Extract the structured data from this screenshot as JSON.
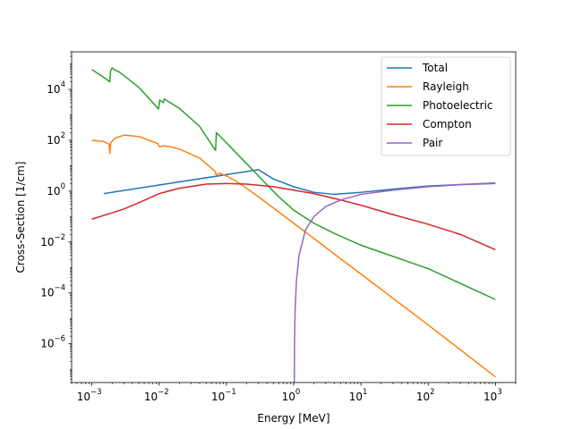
{
  "chart_data": {
    "type": "line",
    "xlabel": "Energy [MeV]",
    "ylabel": "Cross-Section [1/cm]",
    "xscale": "log",
    "yscale": "log",
    "xlim": [
      0.0005,
      2000
    ],
    "ylim": [
      3e-08,
      300000
    ],
    "grid": false,
    "legend_position": "top-right",
    "x_ticks": [
      {
        "value": 0.001,
        "mantissa": "10",
        "exponent": "−3"
      },
      {
        "value": 0.01,
        "mantissa": "10",
        "exponent": "−2"
      },
      {
        "value": 0.1,
        "mantissa": "10",
        "exponent": "−1"
      },
      {
        "value": 1,
        "mantissa": "10",
        "exponent": "0"
      },
      {
        "value": 10,
        "mantissa": "10",
        "exponent": "1"
      },
      {
        "value": 100,
        "mantissa": "10",
        "exponent": "2"
      },
      {
        "value": 1000,
        "mantissa": "10",
        "exponent": "3"
      }
    ],
    "y_ticks": [
      {
        "value": 1e-06,
        "mantissa": "10",
        "exponent": "−6"
      },
      {
        "value": 0.0001,
        "mantissa": "10",
        "exponent": "−4"
      },
      {
        "value": 0.01,
        "mantissa": "10",
        "exponent": "−2"
      },
      {
        "value": 1,
        "mantissa": "10",
        "exponent": "0"
      },
      {
        "value": 100,
        "mantissa": "10",
        "exponent": "2"
      },
      {
        "value": 10000,
        "mantissa": "10",
        "exponent": "4"
      }
    ],
    "series": [
      {
        "name": "Total",
        "color": "#1f77b4",
        "points": [
          [
            0.0015,
            0.8
          ],
          [
            0.3,
            7
          ],
          [
            0.5,
            3
          ],
          [
            1,
            1.5
          ],
          [
            2,
            0.9
          ],
          [
            4,
            0.75
          ],
          [
            10,
            0.9
          ],
          [
            30,
            1.2
          ],
          [
            100,
            1.6
          ],
          [
            1000,
            2.1
          ]
        ]
      },
      {
        "name": "Rayleigh",
        "color": "#ff7f0e",
        "points": [
          [
            0.001,
            100
          ],
          [
            0.0015,
            90
          ],
          [
            0.0018,
            70
          ],
          [
            0.00185,
            30
          ],
          [
            0.0019,
            80
          ],
          [
            0.0022,
            120
          ],
          [
            0.003,
            160
          ],
          [
            0.005,
            140
          ],
          [
            0.0095,
            75
          ],
          [
            0.0101,
            55
          ],
          [
            0.0115,
            60
          ],
          [
            0.012,
            60
          ],
          [
            0.015,
            55
          ],
          [
            0.02,
            45
          ],
          [
            0.04,
            20
          ],
          [
            0.068,
            6
          ],
          [
            0.07,
            4.5
          ],
          [
            0.08,
            5
          ],
          [
            0.1,
            4
          ],
          [
            0.15,
            2.2
          ],
          [
            0.3,
            0.6
          ],
          [
            1,
            0.055
          ],
          [
            10,
            0.00055
          ],
          [
            100,
            5.5e-06
          ],
          [
            1000,
            5e-08
          ]
        ]
      },
      {
        "name": "Photoelectric",
        "color": "#2ca02c",
        "points": [
          [
            0.001,
            60000
          ],
          [
            0.0015,
            30000
          ],
          [
            0.00185,
            20000
          ],
          [
            0.0019,
            55000
          ],
          [
            0.002,
            70000
          ],
          [
            0.0022,
            58000
          ],
          [
            0.0025,
            50000
          ],
          [
            0.003,
            35000
          ],
          [
            0.005,
            12000
          ],
          [
            0.0098,
            1700
          ],
          [
            0.0102,
            3800
          ],
          [
            0.0115,
            3000
          ],
          [
            0.012,
            4200
          ],
          [
            0.02,
            1800
          ],
          [
            0.04,
            350
          ],
          [
            0.069,
            40
          ],
          [
            0.071,
            200
          ],
          [
            0.1,
            80
          ],
          [
            0.2,
            12
          ],
          [
            0.4,
            1.8
          ],
          [
            0.6,
            0.6
          ],
          [
            1,
            0.18
          ],
          [
            2,
            0.055
          ],
          [
            4,
            0.022
          ],
          [
            10,
            0.0075
          ],
          [
            100,
            0.0009
          ],
          [
            1000,
            5.5e-05
          ]
        ]
      },
      {
        "name": "Compton",
        "color": "#d62728",
        "points": [
          [
            0.001,
            0.08
          ],
          [
            0.002,
            0.14
          ],
          [
            0.003,
            0.2
          ],
          [
            0.005,
            0.35
          ],
          [
            0.01,
            0.8
          ],
          [
            0.02,
            1.3
          ],
          [
            0.05,
            1.9
          ],
          [
            0.1,
            2.0
          ],
          [
            0.2,
            1.9
          ],
          [
            0.5,
            1.5
          ],
          [
            1,
            1.1
          ],
          [
            2,
            0.8
          ],
          [
            5,
            0.45
          ],
          [
            10,
            0.28
          ],
          [
            30,
            0.12
          ],
          [
            100,
            0.05
          ],
          [
            300,
            0.02
          ],
          [
            1000,
            0.005
          ]
        ]
      },
      {
        "name": "Pair",
        "color": "#9467bd",
        "points": [
          [
            1.022,
            3e-08
          ],
          [
            1.03,
            1e-06
          ],
          [
            1.05,
            2e-05
          ],
          [
            1.1,
            0.0003
          ],
          [
            1.2,
            0.003
          ],
          [
            1.5,
            0.03
          ],
          [
            2,
            0.1
          ],
          [
            3,
            0.25
          ],
          [
            5,
            0.45
          ],
          [
            10,
            0.75
          ],
          [
            30,
            1.1
          ],
          [
            100,
            1.5
          ],
          [
            300,
            1.8
          ],
          [
            1000,
            2.0
          ]
        ]
      }
    ]
  }
}
